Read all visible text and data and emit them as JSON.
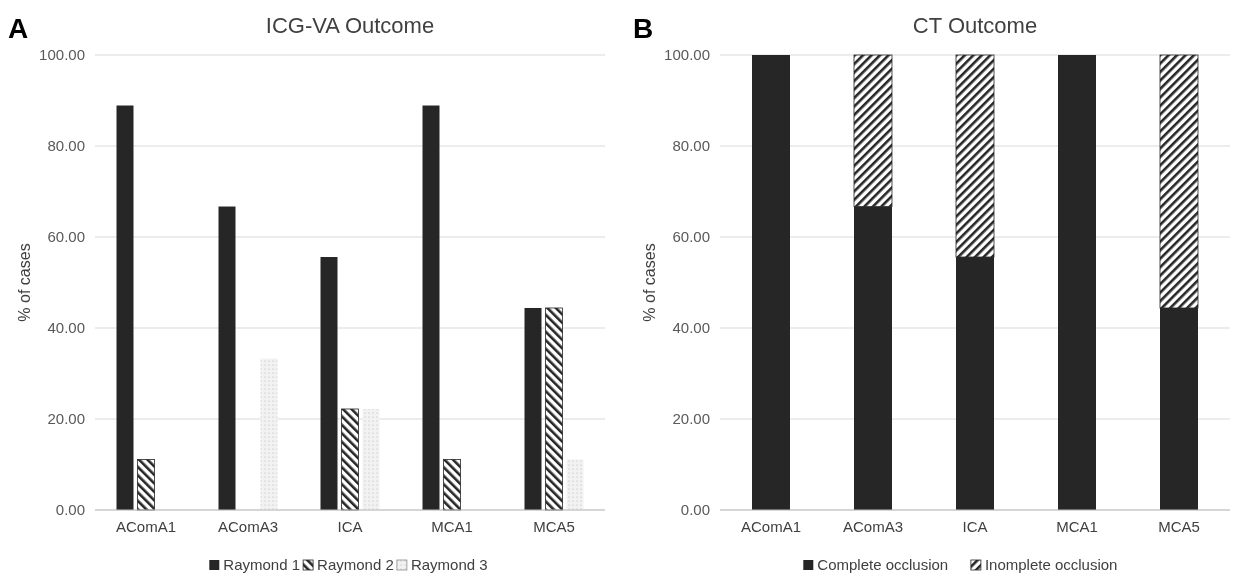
{
  "chart_data": [
    {
      "type": "bar",
      "title": "ICG-VA Outcome",
      "ylabel": "% of cases",
      "annotations": [
        "A"
      ],
      "categories": [
        "AComA1",
        "AComA3",
        "ICA",
        "MCA1",
        "MCA5"
      ],
      "series": [
        {
          "name": "Raymond 1",
          "color": "#262626",
          "values": [
            88.9,
            66.7,
            55.6,
            88.9,
            44.4
          ]
        },
        {
          "name": "Raymond 2",
          "color": "#262626",
          "values": [
            11.1,
            0,
            22.2,
            11.1,
            44.4
          ]
        },
        {
          "name": "Raymond 3",
          "color": "#f2f2f2",
          "values": [
            0,
            33.3,
            22.2,
            0,
            11.1
          ]
        }
      ],
      "ylim": [
        0,
        100
      ],
      "yticks": [
        {
          "value": 0,
          "label": "0.00"
        },
        {
          "value": 20,
          "label": "20.00"
        },
        {
          "value": 40,
          "label": "40.00"
        },
        {
          "value": 60,
          "label": "60.00"
        },
        {
          "value": 80,
          "label": "80.00"
        },
        {
          "value": 100,
          "label": "100.00"
        }
      ],
      "grid": "y",
      "legend": "bottom"
    },
    {
      "type": "bar",
      "stacked": true,
      "title": "CT Outcome",
      "ylabel": "% of cases",
      "annotations": [
        "B"
      ],
      "categories": [
        "AComA1",
        "AComA3",
        "ICA",
        "MCA1",
        "MCA5"
      ],
      "series": [
        {
          "name": "Complete occlusion",
          "color": "#262626",
          "values": [
            100,
            66.7,
            55.6,
            100,
            44.4
          ]
        },
        {
          "name": "Inomplete occlusion",
          "color": "#262626",
          "values": [
            0,
            33.3,
            44.4,
            0,
            55.6
          ]
        }
      ],
      "ylim": [
        0,
        100
      ],
      "yticks": [
        {
          "value": 0,
          "label": "0.00"
        },
        {
          "value": 20,
          "label": "20.00"
        },
        {
          "value": 40,
          "label": "40.00"
        },
        {
          "value": 60,
          "label": "60.00"
        },
        {
          "value": 80,
          "label": "80.00"
        },
        {
          "value": 100,
          "label": "100.00"
        }
      ],
      "grid": "y",
      "legend": "bottom"
    }
  ]
}
